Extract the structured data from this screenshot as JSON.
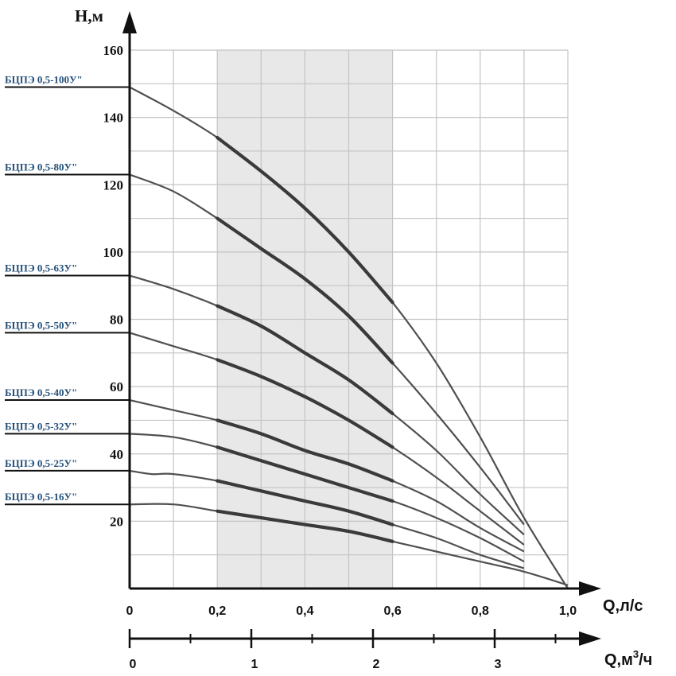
{
  "chart_data": {
    "type": "line",
    "title": "",
    "ylabel": "Н,м",
    "xlabel": "Q,л/с",
    "x2label_main": "Q,м",
    "x2label_sup": "3",
    "x2label_tail": "/ч",
    "xlim": [
      0,
      1.0
    ],
    "ylim": [
      0,
      160
    ],
    "yticks": [
      "20",
      "40",
      "60",
      "80",
      "100",
      "120",
      "140",
      "160"
    ],
    "ytick_values": [
      20,
      40,
      60,
      80,
      100,
      120,
      140,
      160
    ],
    "xticks": [
      "0",
      "0,2",
      "0,4",
      "0,6",
      "0,8",
      "1,0"
    ],
    "xtick_values": [
      0,
      0.2,
      0.4,
      0.6,
      0.8,
      1.0
    ],
    "x2ticks": [
      "0",
      "1",
      "2",
      "3"
    ],
    "x2tick_values": [
      0,
      1,
      2,
      3
    ],
    "x2_minor_values": [
      0.5,
      1.5,
      2.5,
      3.5
    ],
    "shaded_range": [
      0.2,
      0.6
    ],
    "series": [
      {
        "name": "БЦПЭ 0,5-100У\"",
        "x": [
          0,
          0.1,
          0.2,
          0.3,
          0.4,
          0.5,
          0.6,
          0.7,
          0.8,
          0.9,
          1.0
        ],
        "y": [
          149,
          142,
          134,
          124,
          113,
          100,
          85,
          67,
          45,
          21,
          0
        ]
      },
      {
        "name": "БЦПЭ 0,5-80У\"",
        "x": [
          0,
          0.1,
          0.2,
          0.3,
          0.4,
          0.5,
          0.6,
          0.7,
          0.8,
          0.9
        ],
        "y": [
          123,
          118,
          110,
          101,
          92,
          81,
          67,
          52,
          36,
          19
        ]
      },
      {
        "name": "БЦПЭ 0,5-63У\"",
        "x": [
          0,
          0.1,
          0.2,
          0.3,
          0.4,
          0.5,
          0.6,
          0.7,
          0.8,
          0.9
        ],
        "y": [
          93,
          89,
          84,
          78,
          70,
          62,
          52,
          41,
          28,
          16
        ]
      },
      {
        "name": "БЦПЭ 0,5-50У\"",
        "x": [
          0,
          0.1,
          0.2,
          0.3,
          0.4,
          0.5,
          0.6,
          0.7,
          0.8,
          0.9
        ],
        "y": [
          76,
          72,
          68,
          63,
          57,
          50,
          42,
          33,
          23,
          13
        ]
      },
      {
        "name": "БЦПЭ 0,5-40У\"",
        "x": [
          0,
          0.1,
          0.2,
          0.3,
          0.4,
          0.5,
          0.6,
          0.7,
          0.8,
          0.9
        ],
        "y": [
          56,
          53,
          50,
          46,
          41,
          37,
          32,
          26,
          18,
          11
        ]
      },
      {
        "name": "БЦПЭ 0,5-32У\"",
        "x": [
          0,
          0.1,
          0.2,
          0.3,
          0.4,
          0.5,
          0.6,
          0.7,
          0.8,
          0.9
        ],
        "y": [
          46,
          45,
          42,
          38,
          34,
          30,
          26,
          21,
          15,
          8
        ]
      },
      {
        "name": "БЦПЭ 0,5-25У\"",
        "x": [
          0,
          0.05,
          0.1,
          0.2,
          0.3,
          0.4,
          0.5,
          0.6,
          0.7,
          0.8,
          0.9
        ],
        "y": [
          35,
          34,
          34,
          32,
          29,
          26,
          23,
          19,
          15,
          10,
          6
        ]
      },
      {
        "name": "БЦПЭ 0,5-16У\"",
        "x": [
          0,
          0.1,
          0.2,
          0.3,
          0.4,
          0.5,
          0.6,
          0.7,
          0.8,
          0.9,
          1.0
        ],
        "y": [
          25,
          25,
          23,
          21,
          19,
          17,
          14,
          11,
          8,
          5,
          1
        ]
      }
    ]
  }
}
